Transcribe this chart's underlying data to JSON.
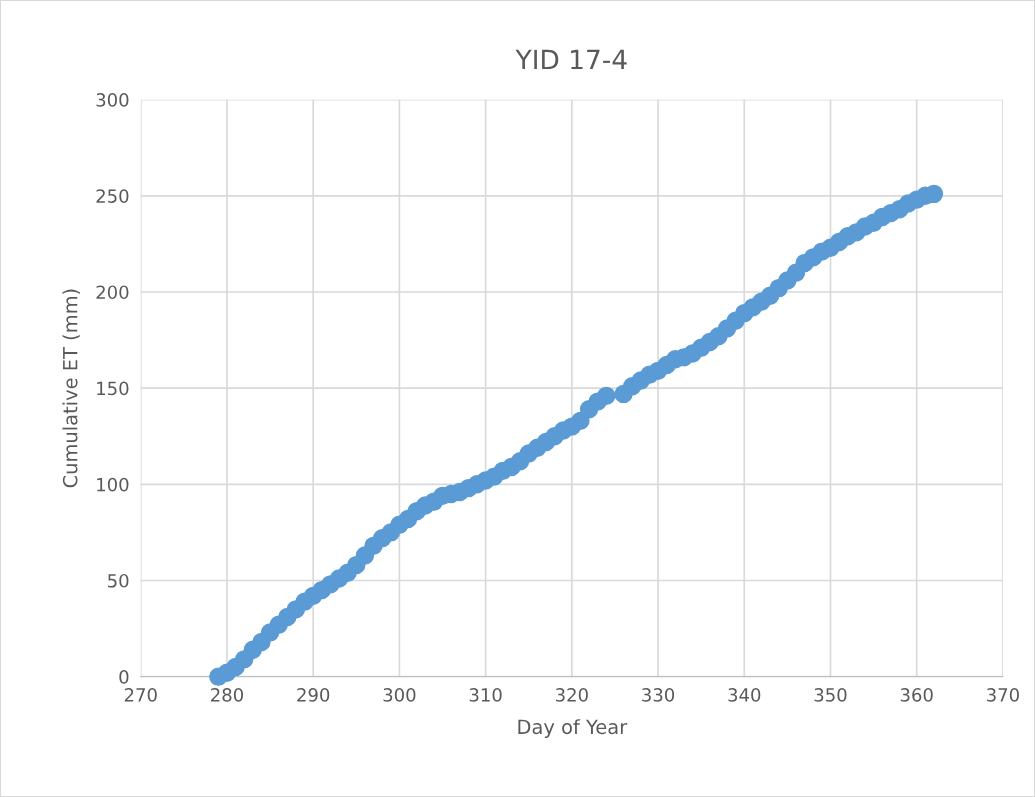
{
  "chart_data": {
    "type": "scatter",
    "title": "YID 17-4",
    "xlabel": "Day of Year",
    "ylabel": "Cumulative ET (mm)",
    "x": [
      279,
      280,
      281,
      282,
      283,
      284,
      285,
      286,
      287,
      288,
      289,
      290,
      291,
      292,
      293,
      294,
      295,
      296,
      297,
      298,
      299,
      300,
      301,
      302,
      303,
      304,
      305,
      306,
      307,
      308,
      309,
      310,
      311,
      312,
      313,
      314,
      315,
      316,
      317,
      318,
      319,
      320,
      321,
      322,
      323,
      324,
      325,
      326,
      327,
      328,
      329,
      330,
      331,
      332,
      333,
      334,
      335,
      336,
      337,
      338,
      339,
      340,
      341,
      342,
      343,
      344,
      345,
      346,
      347,
      348,
      349,
      350,
      351,
      352,
      353,
      354,
      355,
      356,
      357,
      358,
      359,
      360,
      361,
      362
    ],
    "series": [
      {
        "color": "#5b9bd5",
        "values": [
          0,
          2,
          5,
          9,
          14,
          18,
          23,
          27,
          31,
          35,
          39,
          42,
          45,
          48,
          51,
          54,
          58,
          63,
          68,
          72,
          75,
          79,
          82,
          86,
          89,
          91,
          94,
          95,
          96,
          98,
          100,
          102,
          104,
          107,
          109,
          112,
          116,
          119,
          122,
          125,
          128,
          130,
          133,
          139,
          143,
          146,
          null,
          147,
          151,
          154,
          157,
          159,
          162,
          165,
          166,
          168,
          171,
          174,
          177,
          181,
          185,
          189,
          192,
          195,
          198,
          202,
          206,
          210,
          215,
          218,
          221,
          223,
          226,
          229,
          231,
          234,
          236,
          239,
          241,
          243,
          246,
          248,
          250,
          251
        ]
      }
    ],
    "xlim": [
      270,
      370
    ],
    "xticks": [
      270,
      280,
      290,
      300,
      310,
      320,
      330,
      340,
      350,
      360,
      370
    ],
    "ylim": [
      0,
      300
    ],
    "yticks": [
      0,
      50,
      100,
      150,
      200,
      250,
      300
    ],
    "grid": true,
    "marker": "circle",
    "legend": false
  }
}
